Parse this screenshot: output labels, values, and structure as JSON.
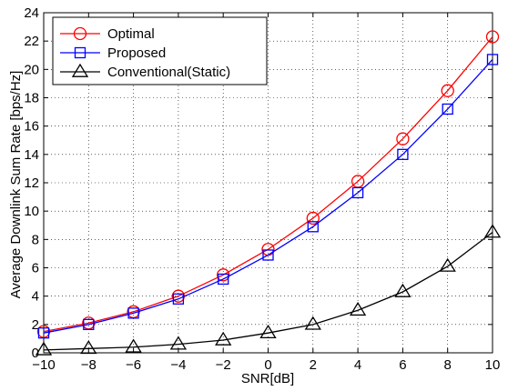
{
  "chart_data": {
    "type": "line",
    "title": "",
    "xlabel": "SNR[dB]",
    "ylabel": "Average Downlink Sum Rate [bps/Hz]",
    "xlim": [
      -10,
      10
    ],
    "ylim": [
      0,
      24
    ],
    "xticks": [
      -10,
      -8,
      -6,
      -4,
      -2,
      0,
      2,
      4,
      6,
      8,
      10
    ],
    "yticks": [
      0,
      2,
      4,
      6,
      8,
      10,
      12,
      14,
      16,
      18,
      20,
      22,
      24
    ],
    "grid": true,
    "legend_position": "top-left",
    "x": [
      -10,
      -8,
      -6,
      -4,
      -2,
      0,
      2,
      4,
      6,
      8,
      10
    ],
    "series": [
      {
        "name": "Optimal",
        "color": "#ff0000",
        "marker": "circle",
        "values": [
          1.5,
          2.1,
          2.9,
          4.0,
          5.5,
          7.3,
          9.5,
          12.1,
          15.1,
          18.5,
          22.3
        ]
      },
      {
        "name": "Proposed",
        "color": "#0000ff",
        "marker": "square",
        "values": [
          1.4,
          2.0,
          2.8,
          3.8,
          5.2,
          6.9,
          8.9,
          11.3,
          14.0,
          17.2,
          20.7
        ]
      },
      {
        "name": "Conventional(Static)",
        "color": "#000000",
        "marker": "triangle",
        "values": [
          0.2,
          0.3,
          0.4,
          0.6,
          0.9,
          1.4,
          2.0,
          3.0,
          4.3,
          6.1,
          8.5
        ]
      }
    ]
  }
}
